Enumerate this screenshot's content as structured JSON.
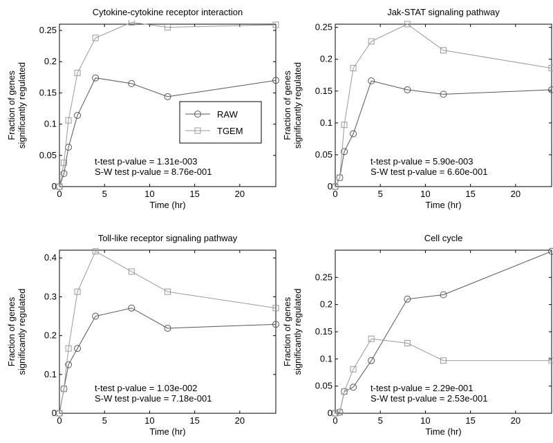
{
  "chart_data": [
    {
      "type": "line",
      "title": "Cytokine-cytokine receptor interaction",
      "xlabel": "Time (hr)",
      "ylabel": [
        "Fraction of genes",
        "significantly regulated"
      ],
      "xlim": [
        0,
        24
      ],
      "ylim": [
        0,
        0.26
      ],
      "xticks": [
        0,
        5,
        10,
        15,
        20
      ],
      "xtick_labels": [
        "0",
        "5",
        "10",
        "15",
        "20"
      ],
      "yticks": [
        0,
        0.05,
        0.1,
        0.15,
        0.2,
        0.25
      ],
      "ytick_labels": [
        "0",
        "0.05",
        "0.1",
        "0.15",
        "0.2",
        "0.25"
      ],
      "x": [
        0,
        0.5,
        1,
        2,
        4,
        8,
        12,
        24
      ],
      "series": [
        {
          "name": "RAW",
          "marker": "circle",
          "color": "#555555",
          "values": [
            0,
            0.021,
            0.063,
            0.114,
            0.174,
            0.165,
            0.144,
            0.17
          ]
        },
        {
          "name": "TGEM",
          "marker": "square",
          "color": "#999999",
          "values": [
            0,
            0.038,
            0.106,
            0.182,
            0.238,
            0.263,
            0.255,
            0.259
          ]
        }
      ],
      "legend": {
        "position": "center-right",
        "entries": [
          "RAW",
          "TGEM"
        ]
      },
      "annotations": [
        "t-test p-value = 1.31e-003",
        "S-W test p-value = 8.76e-001"
      ]
    },
    {
      "type": "line",
      "title": "Jak-STAT signaling pathway",
      "xlabel": "Time (hr)",
      "ylabel": [
        "Fraction of genes",
        "significantly regulated"
      ],
      "xlim": [
        0,
        24
      ],
      "ylim": [
        0,
        0.255
      ],
      "xticks": [
        0,
        5,
        10,
        15,
        20
      ],
      "xtick_labels": [
        "0",
        "5",
        "10",
        "15",
        "20"
      ],
      "yticks": [
        0,
        0.05,
        0.1,
        0.15,
        0.2,
        0.25
      ],
      "ytick_labels": [
        "0",
        "0.05",
        "0.1",
        "0.15",
        "0.2",
        "0.25"
      ],
      "x": [
        0,
        0.5,
        1,
        2,
        4,
        8,
        12,
        24
      ],
      "series": [
        {
          "name": "RAW",
          "marker": "circle",
          "color": "#555555",
          "values": [
            0,
            0.014,
            0.055,
            0.083,
            0.166,
            0.152,
            0.145,
            0.152
          ]
        },
        {
          "name": "TGEM",
          "marker": "square",
          "color": "#999999",
          "values": [
            0,
            0.014,
            0.097,
            0.186,
            0.228,
            0.255,
            0.214,
            0.186
          ]
        }
      ],
      "annotations": [
        "t-test p-value = 5.90e-003",
        "S-W test p-value = 6.60e-001"
      ]
    },
    {
      "type": "line",
      "title": "Toll-like receptor signaling pathway",
      "xlabel": "Time (hr)",
      "ylabel": [
        "Fraction of genes",
        "significantly regulated"
      ],
      "xlim": [
        0,
        24
      ],
      "ylim": [
        0,
        0.42
      ],
      "xticks": [
        0,
        5,
        10,
        15,
        20
      ],
      "xtick_labels": [
        "0",
        "5",
        "10",
        "15",
        "20"
      ],
      "yticks": [
        0,
        0.1,
        0.2,
        0.3,
        0.4
      ],
      "ytick_labels": [
        "0",
        "0.1",
        "0.2",
        "0.3",
        "0.4"
      ],
      "x": [
        0,
        0.5,
        1,
        2,
        4,
        8,
        12,
        24
      ],
      "series": [
        {
          "name": "RAW",
          "marker": "circle",
          "color": "#555555",
          "values": [
            0,
            0.063,
            0.125,
            0.167,
            0.25,
            0.271,
            0.219,
            0.229
          ]
        },
        {
          "name": "TGEM",
          "marker": "square",
          "color": "#999999",
          "values": [
            0,
            0.063,
            0.167,
            0.313,
            0.417,
            0.365,
            0.313,
            0.271
          ]
        }
      ],
      "annotations": [
        "t-test p-value = 1.03e-002",
        "S-W test p-value = 7.18e-001"
      ]
    },
    {
      "type": "line",
      "title": "Cell cycle",
      "xlabel": "Time (hr)",
      "ylabel": [
        "Fraction of genes",
        "significantly regulated"
      ],
      "xlim": [
        0,
        24
      ],
      "ylim": [
        0,
        0.3
      ],
      "xticks": [
        0,
        5,
        10,
        15,
        20
      ],
      "xtick_labels": [
        "0",
        "5",
        "10",
        "15",
        "20"
      ],
      "yticks": [
        0,
        0.05,
        0.1,
        0.15,
        0.2,
        0.25
      ],
      "ytick_labels": [
        "0",
        "0.05",
        "0.1",
        "0.15",
        "0.2",
        "0.25"
      ],
      "x": [
        0,
        0.5,
        1,
        2,
        4,
        8,
        12,
        24
      ],
      "series": [
        {
          "name": "RAW",
          "marker": "circle",
          "color": "#555555",
          "values": [
            0,
            0.002,
            0.04,
            0.048,
            0.097,
            0.21,
            0.218,
            0.298
          ]
        },
        {
          "name": "TGEM",
          "marker": "square",
          "color": "#999999",
          "values": [
            0,
            0.002,
            0.04,
            0.081,
            0.137,
            0.129,
            0.097,
            0.097
          ]
        }
      ],
      "annotations": [
        "t-test p-value = 2.29e-001",
        "S-W test p-value = 2.53e-001"
      ]
    }
  ]
}
